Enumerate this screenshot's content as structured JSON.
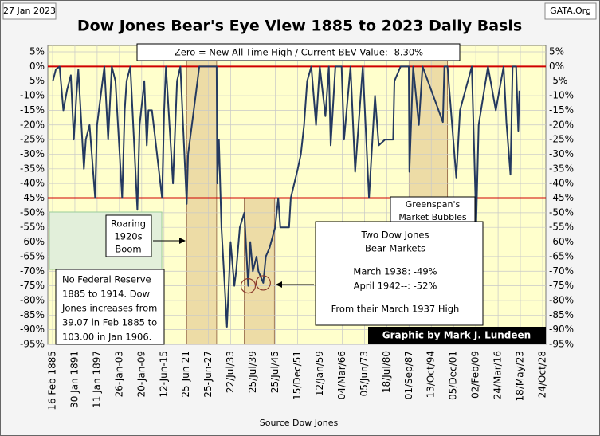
{
  "chart_data": {
    "type": "line",
    "title": "Dow Jones Bear's Eye View 1885 to 2023 Daily Basis",
    "date": "27 Jan 2023",
    "site": "GATA.Org",
    "source": "Source  Dow Jones",
    "credit": "Graphic by Mark J. Lundeen",
    "color": "#24395f",
    "grid": true,
    "ylim": [
      -95,
      5
    ],
    "yticks": [
      {
        "value": 5,
        "label": "5%"
      },
      {
        "value": 0,
        "label": "0%"
      },
      {
        "value": -5,
        "label": "-5%"
      },
      {
        "value": -10,
        "label": "-10%"
      },
      {
        "value": -15,
        "label": "-15%"
      },
      {
        "value": -20,
        "label": "-20%"
      },
      {
        "value": -25,
        "label": "-25%"
      },
      {
        "value": -30,
        "label": "-30%"
      },
      {
        "value": -35,
        "label": "-35%"
      },
      {
        "value": -40,
        "label": "-40%"
      },
      {
        "value": -45,
        "label": "-45%"
      },
      {
        "value": -50,
        "label": "-50%"
      },
      {
        "value": -55,
        "label": "-55%"
      },
      {
        "value": -60,
        "label": "-60%"
      },
      {
        "value": -65,
        "label": "-65%"
      },
      {
        "value": -70,
        "label": "-70%"
      },
      {
        "value": -75,
        "label": "-75%"
      },
      {
        "value": -80,
        "label": "-80%"
      },
      {
        "value": -85,
        "label": "-85%"
      },
      {
        "value": -90,
        "label": "-90%"
      },
      {
        "value": -95,
        "label": "-95%"
      }
    ],
    "xlim": [
      1885.13,
      2028.81
    ],
    "xticks": [
      {
        "value": 1885.13,
        "label": "16 Feb 1885"
      },
      {
        "value": 1891.08,
        "label": "30 Jan 1891"
      },
      {
        "value": 1897.03,
        "label": "11 Jan 1897"
      },
      {
        "value": 1903.07,
        "label": "26-Jan-03"
      },
      {
        "value": 1909.05,
        "label": "20-Jan-09"
      },
      {
        "value": 1915.45,
        "label": "12-Jun-15"
      },
      {
        "value": 1921.48,
        "label": "25-Jun-21"
      },
      {
        "value": 1927.48,
        "label": "25-Jun-27"
      },
      {
        "value": 1933.55,
        "label": "22/Jul/33"
      },
      {
        "value": 1939.56,
        "label": "25/Jul/39"
      },
      {
        "value": 1945.56,
        "label": "25/Jul/45"
      },
      {
        "value": 1951.96,
        "label": "15/Dec/51"
      },
      {
        "value": 1959.03,
        "label": "12/Jan/59"
      },
      {
        "value": 1966.17,
        "label": "04/Mar/66"
      },
      {
        "value": 1973.43,
        "label": "05/Jun/73"
      },
      {
        "value": 1980.54,
        "label": "18/Jul/80"
      },
      {
        "value": 1987.67,
        "label": "01/Sep/87"
      },
      {
        "value": 1994.78,
        "label": "13/Oct/94"
      },
      {
        "value": 2001.93,
        "label": "05/Dec/01"
      },
      {
        "value": 2009.09,
        "label": "02/Feb/09"
      },
      {
        "value": 2016.23,
        "label": "24/Mar/16"
      },
      {
        "value": 2023.38,
        "label": "18/May/23"
      },
      {
        "value": 2028.81,
        "label": "24/Oct/28"
      }
    ],
    "reference_lines": [
      0,
      -45
    ],
    "bands": [
      {
        "x": [
          1921.6,
          1929.7
        ],
        "y": [
          5,
          -95
        ]
      },
      {
        "x": [
          1937.2,
          1945.3
        ],
        "y": [
          -45,
          -95
        ]
      },
      {
        "x": [
          1987.7,
          2000.0
        ],
        "y": [
          5,
          -45
        ]
      }
    ],
    "highlights": [
      {
        "x": 1938.25,
        "y": -75
      },
      {
        "x": 1942.3,
        "y": -74
      }
    ],
    "x": [
      1885.2,
      1886,
      1887,
      1888,
      1889,
      1890,
      1890.8,
      1891.5,
      1892,
      1893.5,
      1894,
      1895,
      1896.5,
      1897,
      1898,
      1899,
      1900,
      1901,
      1902,
      1903.8,
      1904.5,
      1905,
      1906,
      1907.9,
      1908.5,
      1909.8,
      1910.5,
      1911,
      1912,
      1914.9,
      1915.5,
      1916,
      1917.9,
      1919,
      1919.9,
      1921.6,
      1922,
      1924,
      1925,
      1927,
      1929.7,
      1929.85,
      1930.3,
      1931,
      1931.9,
      1932.5,
      1933,
      1933.5,
      1934.5,
      1935,
      1936,
      1937.2,
      1938.25,
      1938.8,
      1939.5,
      1940.5,
      1941,
      1942.3,
      1943,
      1944,
      1945.5,
      1946.4,
      1947,
      1949.5,
      1950,
      1951,
      1952,
      1953,
      1954,
      1955,
      1956.3,
      1957.8,
      1959,
      1960.8,
      1961.9,
      1962.5,
      1964,
      1966,
      1966.8,
      1968.9,
      1970.4,
      1972.9,
      1974.9,
      1976.8,
      1978,
      1980,
      1982.6,
      1983,
      1985,
      1987.6,
      1987.8,
      1989,
      1990.8,
      1992,
      1998.5,
      1999,
      2000,
      2002.8,
      2004,
      2007.8,
      2009.2,
      2010,
      2013,
      2015.5,
      2018,
      2018.9,
      2020.2,
      2020.9,
      2022,
      2022.7,
      2023.07
    ],
    "values": [
      -5,
      -1,
      0,
      -15,
      -8,
      -3,
      -25,
      -10,
      -1,
      -35,
      -25,
      -20,
      -45,
      -20,
      -10,
      0,
      -25,
      0,
      -5,
      -45,
      -15,
      -5,
      0,
      -49,
      -20,
      -5,
      -27,
      -15,
      -15,
      -45,
      -15,
      0,
      -40,
      -5,
      0,
      -47,
      -30,
      -10,
      0,
      0,
      0,
      -40,
      -25,
      -55,
      -75,
      -89,
      -75,
      -60,
      -75,
      -70,
      -55,
      -50,
      -75,
      -60,
      -70,
      -65,
      -70,
      -74,
      -65,
      -62,
      -55,
      -45,
      -55,
      -55,
      -45,
      -40,
      -35,
      -30,
      -20,
      -5,
      0,
      -20,
      0,
      -17,
      0,
      -27,
      0,
      0,
      -25,
      0,
      -36,
      0,
      -45,
      -10,
      -27,
      -25,
      -25,
      -5,
      0,
      0,
      -36,
      0,
      -20,
      0,
      -19,
      0,
      0,
      -38,
      -15,
      0,
      -54,
      -20,
      0,
      -15,
      0,
      -19,
      -37,
      0,
      0,
      -22,
      -8.3
    ],
    "annotations": {
      "zero_box": "Zero = New All-Time High / Current BEV Value: -8.30%",
      "roaring": [
        "Roaring",
        "1920s",
        "Boom"
      ],
      "fed": [
        "No Federal Reserve",
        "1885 to 1914.  Dow",
        "Jones increases from",
        "39.07 in Feb 1885 to",
        "103.00 in Jan 1906."
      ],
      "greenspan": [
        "Greenspan's",
        "Market Bubbles"
      ],
      "bear": [
        "Two Dow Jones",
        "Bear Markets",
        "March  1938:  -49%",
        "April 1942--: -52%",
        "From their March  1937  High"
      ]
    }
  }
}
